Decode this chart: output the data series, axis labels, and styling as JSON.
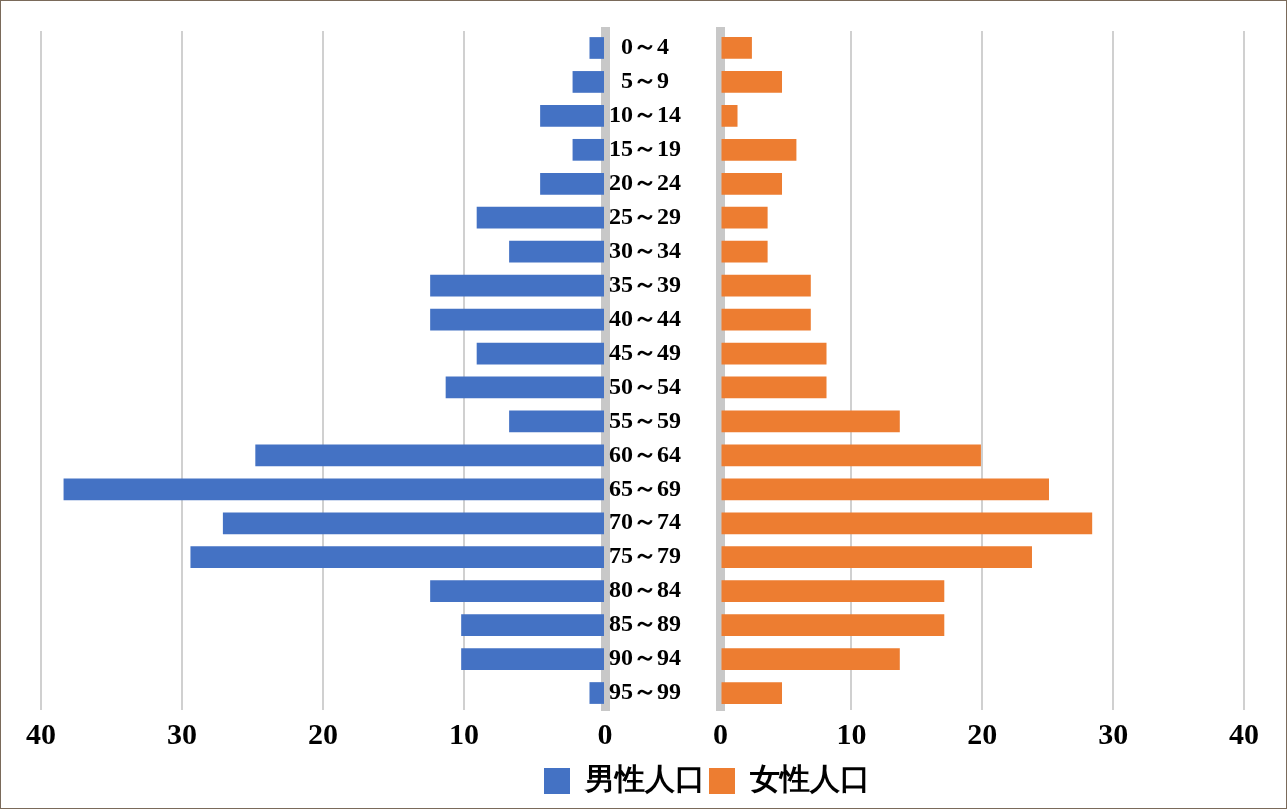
{
  "chart_data": [
    {
      "type": "bar",
      "orientation": "horizontal",
      "categories": [
        "0～4",
        "5～9",
        "10～14",
        "15～19",
        "20～24",
        "25～29",
        "30～34",
        "35～39",
        "40～44",
        "45～49",
        "50～54",
        "55～59",
        "60～64",
        "65～69",
        "70～74",
        "75～79",
        "80～84",
        "85～89",
        "90～94",
        "95～99"
      ],
      "series": [
        {
          "name": "男性人口",
          "color": "#4472c4",
          "values": [
            1.1,
            2.3,
            4.6,
            2.3,
            4.6,
            9.1,
            6.8,
            12.4,
            12.4,
            9.1,
            11.3,
            6.8,
            24.8,
            38.4,
            27.1,
            29.4,
            12.4,
            10.2,
            10.2,
            1.1
          ]
        }
      ],
      "xlim": [
        40,
        0
      ],
      "xticks": [
        40,
        30,
        20,
        10,
        0
      ],
      "grid": "x",
      "legend": "bottom"
    },
    {
      "type": "bar",
      "orientation": "horizontal",
      "categories": [
        null,
        null,
        null,
        null,
        null,
        null,
        null,
        null,
        null,
        null,
        null,
        null,
        null,
        null,
        null,
        null,
        null,
        null,
        null,
        null
      ],
      "series": [
        {
          "name": "女性人口",
          "color": "#ed7d31",
          "values": [
            2.4,
            4.7,
            1.3,
            5.8,
            4.7,
            3.6,
            3.6,
            6.9,
            6.9,
            8.1,
            8.1,
            13.7,
            19.9,
            25.1,
            28.4,
            23.8,
            17.1,
            17.1,
            13.7,
            4.7
          ]
        }
      ],
      "xlim": [
        0,
        40
      ],
      "xticks": [
        0,
        10,
        20,
        30,
        40
      ],
      "grid": "x",
      "legend": "bottom",
      "tick_labels": "x"
    }
  ]
}
